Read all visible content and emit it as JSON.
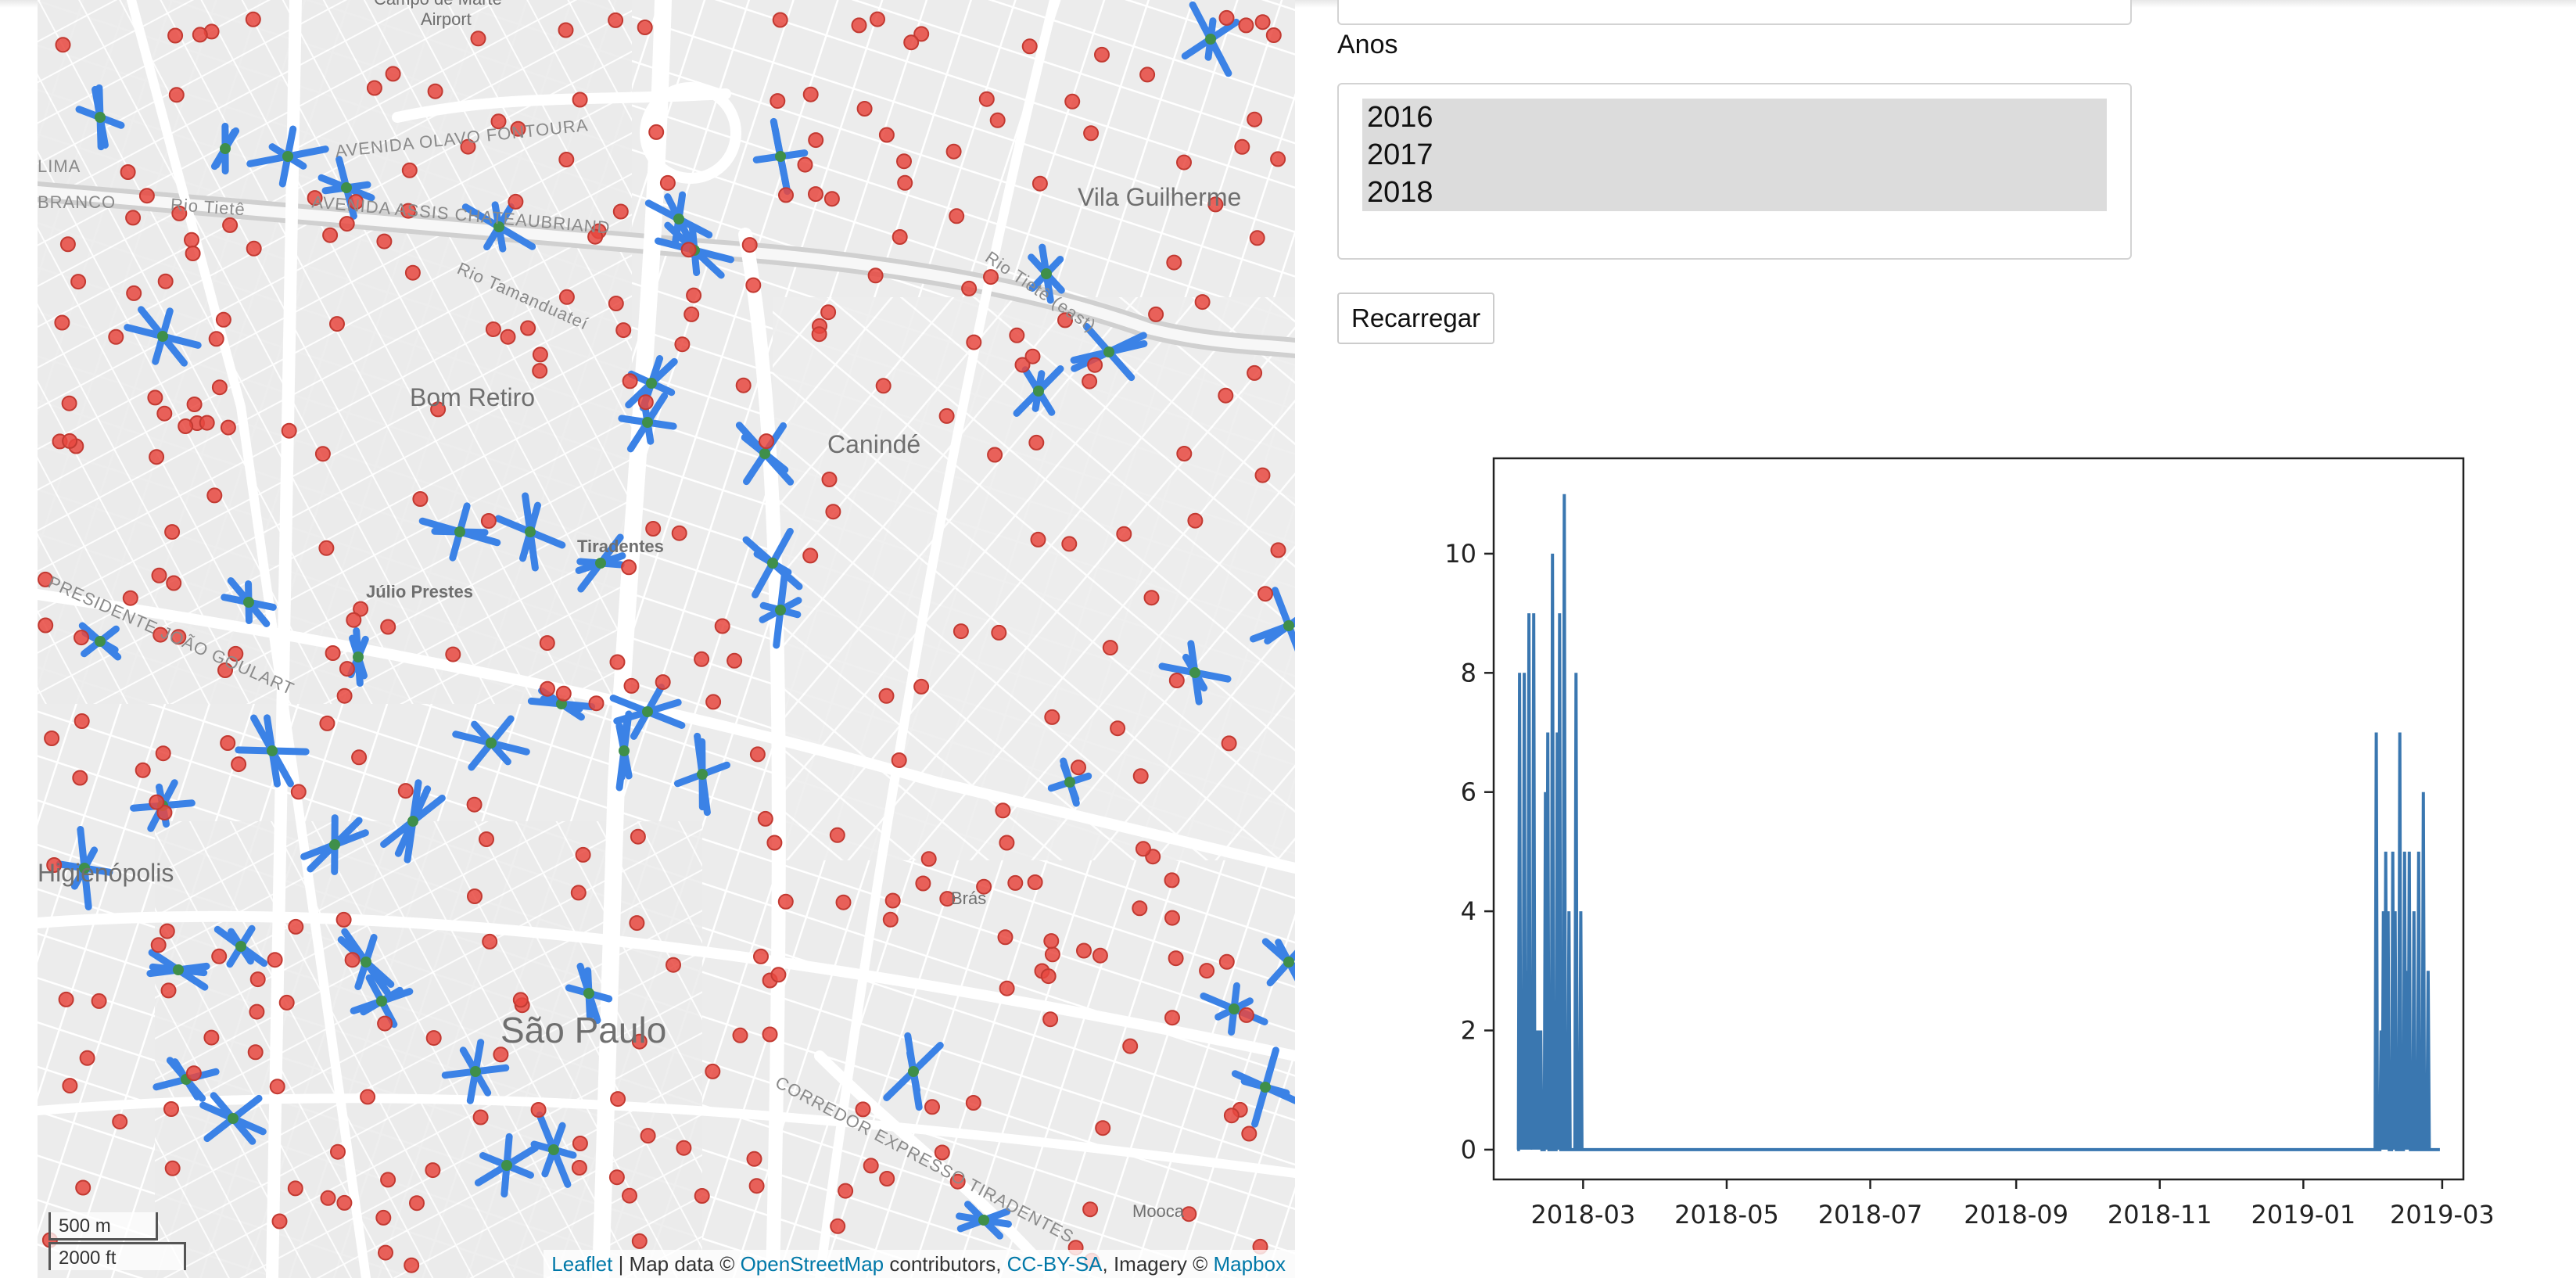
{
  "map": {
    "places": [
      {
        "name": "Campo de Marte"
      },
      {
        "name": "Airport"
      },
      {
        "name": "Vila Guilherme"
      },
      {
        "name": "Bom Retiro"
      },
      {
        "name": "Canindé"
      },
      {
        "name": "Tiradentes"
      },
      {
        "name": "Júlio Prestes"
      },
      {
        "name": "Higienópolis"
      },
      {
        "name": "Brás"
      },
      {
        "name": "São Paulo"
      },
      {
        "name": "Mooca"
      },
      {
        "name": "Rio Tietê"
      },
      {
        "name": "Rio Tamanduateí"
      },
      {
        "name": "AVENIDA OLAVO FONTOURA"
      },
      {
        "name": "AVENIDA ASSIS CHATEAUBRIAND"
      },
      {
        "name": "CORREDOR EXPRESSO TIRADENTES"
      },
      {
        "name": "PRESIDENTE JOÃO GOULART"
      },
      {
        "name": "LIMA"
      },
      {
        "name": "BRANCO"
      },
      {
        "name": "Rio Tietê (east)"
      }
    ],
    "scale": {
      "meters": "500 m",
      "feet": "2000 ft"
    },
    "attribution": {
      "leaflet": "Leaflet",
      "sep": " | Map data © ",
      "osm": "OpenStreetMap",
      "contributors": " contributors, ",
      "license": "CC-BY-SA",
      "imagery": ", Imagery © ",
      "mapbox": "Mapbox"
    },
    "colors": {
      "marker": "#e8483f",
      "track": "#3b82e6",
      "centroid": "#3f8f4a"
    }
  },
  "form": {
    "years_label": "Anos",
    "years_options": [
      "2016",
      "2017",
      "2018"
    ],
    "reload_label": "Recarregar"
  },
  "chart_data": {
    "type": "line",
    "color": "#3a77b0",
    "x_ticks": [
      "2018-03",
      "2018-05",
      "2018-07",
      "2018-09",
      "2018-11",
      "2019-01",
      "2019-03"
    ],
    "y_ticks": [
      0,
      2,
      4,
      6,
      8,
      10
    ],
    "ylim": [
      -0.5,
      11.6
    ],
    "xlim": [
      "2018-01-22",
      "2019-03-10"
    ],
    "series": [
      {
        "x": [
          "2018-02-01",
          "2018-02-02",
          "2018-02-03",
          "2018-02-04",
          "2018-02-05",
          "2018-02-06",
          "2018-02-07",
          "2018-02-08",
          "2018-02-09",
          "2018-02-10",
          "2018-02-11",
          "2018-02-12",
          "2018-02-13",
          "2018-02-14",
          "2018-02-15",
          "2018-02-16",
          "2018-02-17",
          "2018-02-18",
          "2018-02-19",
          "2018-02-20",
          "2018-02-21",
          "2018-02-22",
          "2018-02-23",
          "2018-02-24",
          "2018-02-25",
          "2018-02-26",
          "2018-02-27",
          "2018-02-28",
          "2018-03-01",
          "2018-03-02",
          "2018-03-03",
          "2019-01-31",
          "2019-02-01",
          "2019-02-02",
          "2019-02-03",
          "2019-02-04",
          "2019-02-05",
          "2019-02-06",
          "2019-02-07",
          "2019-02-08",
          "2019-02-09",
          "2019-02-10",
          "2019-02-11",
          "2019-02-12",
          "2019-02-13",
          "2019-02-14",
          "2019-02-15",
          "2019-02-16",
          "2019-02-17",
          "2019-02-18",
          "2019-02-19",
          "2019-02-20",
          "2019-02-21",
          "2019-02-22",
          "2019-02-23",
          "2019-02-24",
          "2019-02-25",
          "2019-02-26",
          "2019-02-27",
          "2019-02-28"
        ],
        "y": [
          0,
          8,
          2,
          8,
          3,
          9,
          1,
          9,
          2,
          2,
          2,
          0,
          6,
          7,
          0,
          10,
          0,
          7,
          9,
          0,
          11,
          0,
          4,
          0,
          0,
          8,
          0,
          4,
          0,
          0,
          0,
          0,
          7,
          0,
          2,
          4,
          5,
          4,
          0,
          5,
          4,
          0,
          7,
          0,
          5,
          3,
          5,
          0,
          4,
          0,
          5,
          0,
          6,
          0,
          3,
          0,
          0,
          0,
          0,
          0
        ]
      }
    ]
  }
}
